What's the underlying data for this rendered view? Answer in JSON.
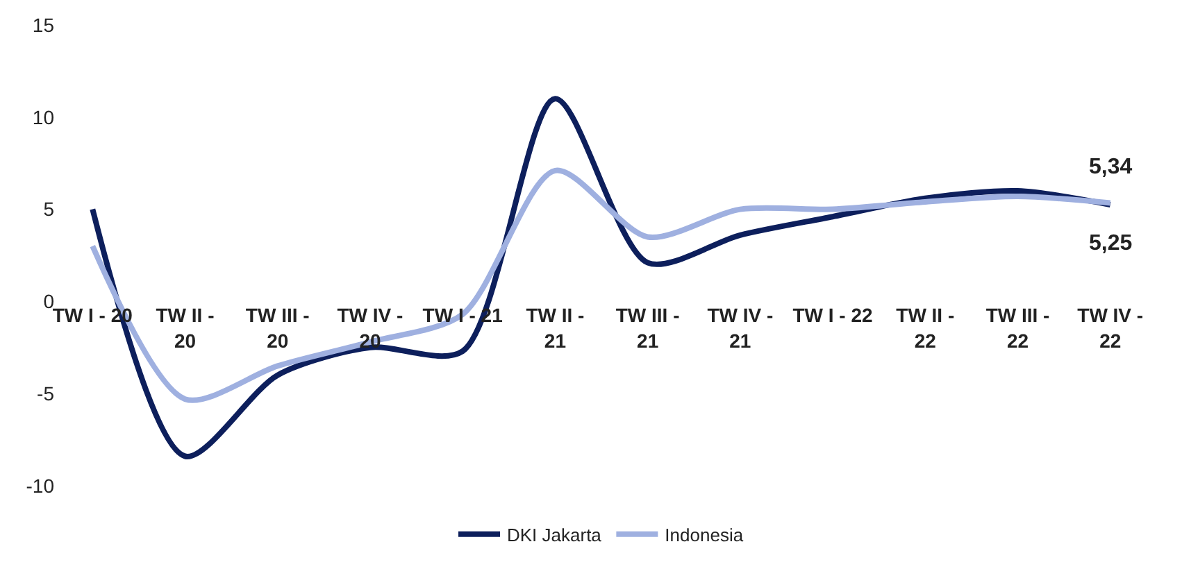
{
  "chart_data": {
    "type": "line",
    "categories": [
      "TW I - 20",
      "TW II - 20",
      "TW III - 20",
      "TW IV - 20",
      "TW I - 21",
      "TW II - 21",
      "TW III - 21",
      "TW IV - 21",
      "TW I - 22",
      "TW II - 22",
      "TW III - 22",
      "TW IV - 22"
    ],
    "series": [
      {
        "name": "DKI Jakarta",
        "color": "#0d1f5c",
        "values": [
          5.0,
          -8.4,
          -4.0,
          -2.5,
          -2.7,
          11.0,
          2.1,
          3.6,
          4.6,
          5.6,
          6.0,
          5.25
        ],
        "value_labels": [
          null,
          null,
          null,
          null,
          null,
          null,
          null,
          null,
          null,
          null,
          null,
          "5,25"
        ]
      },
      {
        "name": "Indonesia",
        "color": "#9fb0e0",
        "values": [
          3.0,
          -5.3,
          -3.5,
          -2.2,
          -0.7,
          7.1,
          3.5,
          5.0,
          5.0,
          5.4,
          5.7,
          5.34
        ],
        "value_labels": [
          null,
          null,
          null,
          null,
          null,
          null,
          null,
          null,
          null,
          null,
          null,
          "5,34"
        ]
      }
    ],
    "ylim": [
      -10,
      15
    ],
    "yticks": [
      -10,
      -5,
      0,
      5,
      10,
      15
    ],
    "legend": "bottom",
    "marker": "none",
    "line_style": "solid"
  }
}
